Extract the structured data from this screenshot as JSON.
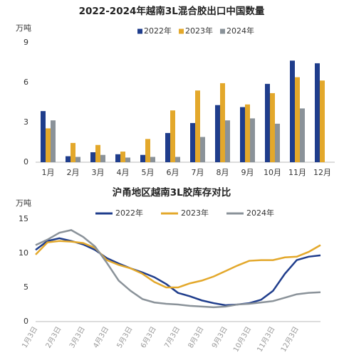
{
  "chart_data": [
    {
      "type": "bar",
      "title": "2022-2024年越南3L混合胶出口中国数量",
      "y_label": "万吨",
      "categories": [
        "1月",
        "2月",
        "3月",
        "4月",
        "5月",
        "6月",
        "7月",
        "8月",
        "9月",
        "10月",
        "11月",
        "12月"
      ],
      "series": [
        {
          "name": "2022年",
          "color": "#1f3d8c",
          "values": [
            3.85,
            0.45,
            0.75,
            0.6,
            0.55,
            2.2,
            2.95,
            4.3,
            4.15,
            5.9,
            7.65,
            7.45
          ]
        },
        {
          "name": "2023年",
          "color": "#e3a82b",
          "values": [
            2.55,
            1.45,
            1.3,
            0.8,
            1.75,
            3.9,
            5.4,
            5.95,
            4.35,
            5.2,
            6.4,
            6.15
          ]
        },
        {
          "name": "2024年",
          "color": "#8a9299",
          "values": [
            3.15,
            0.4,
            0.55,
            0.35,
            0.4,
            0.4,
            1.9,
            3.15,
            3.3,
            2.9,
            4.05,
            null
          ]
        }
      ],
      "ylim": [
        0,
        9
      ],
      "yticks": [
        0,
        3,
        6,
        9
      ],
      "grid": false
    },
    {
      "type": "line",
      "title": "沪甬地区越南3L胶库存对比",
      "y_label": "万吨",
      "categories": [
        "1月3日",
        null,
        "2月3日",
        null,
        "3月3日",
        null,
        "4月3日",
        null,
        "5月3日",
        null,
        "6月3日",
        null,
        "7月3日",
        null,
        "8月3日",
        null,
        "9月3日",
        null,
        "10月3日",
        null,
        "11月3日",
        null,
        "12月3日",
        null,
        null
      ],
      "series": [
        {
          "name": "2022年",
          "color": "#1f3d8c",
          "values": [
            10.5,
            11.8,
            12.2,
            11.8,
            11.3,
            10.5,
            9.3,
            8.5,
            7.8,
            7.2,
            6.5,
            5.5,
            4.2,
            3.7,
            3.1,
            2.7,
            2.4,
            2.5,
            2.7,
            3.2,
            4.5,
            7.0,
            9.0,
            9.5,
            9.7
          ]
        },
        {
          "name": "2023年",
          "color": "#e3a82b",
          "values": [
            9.8,
            11.6,
            11.8,
            11.7,
            11.5,
            10.8,
            9.0,
            8.3,
            7.8,
            7.0,
            5.8,
            5.0,
            5.0,
            5.6,
            6.0,
            6.6,
            7.4,
            8.2,
            8.9,
            9.0,
            9.0,
            9.4,
            9.5,
            10.2,
            11.2
          ]
        },
        {
          "name": "2024年",
          "color": "#8a9299",
          "values": [
            11.2,
            12.0,
            13.0,
            13.4,
            12.4,
            11.0,
            8.6,
            6.0,
            4.5,
            3.3,
            2.8,
            2.6,
            2.5,
            2.3,
            2.2,
            2.1,
            2.2,
            2.5,
            2.6,
            2.8,
            3.0,
            3.5,
            4.0,
            4.2,
            4.3
          ]
        }
      ],
      "ylim": [
        0,
        15
      ],
      "yticks": [
        0,
        5,
        10,
        15
      ],
      "grid": false
    }
  ]
}
